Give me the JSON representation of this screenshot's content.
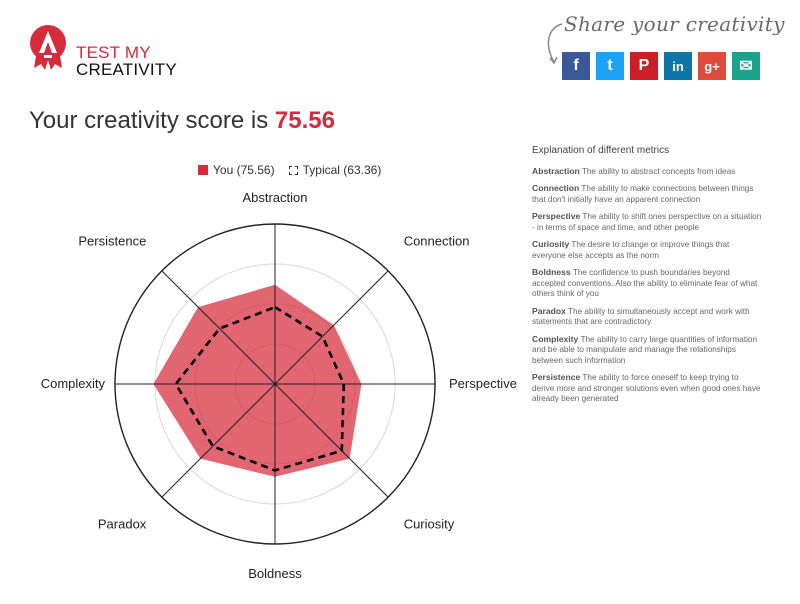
{
  "logo": {
    "line1": "TEST MY",
    "line2": "CREATIVITY",
    "icon": "lightbulb-badge-icon",
    "brand_color": "#d52b3a"
  },
  "share": {
    "title": "Share your creativity",
    "buttons": [
      {
        "name": "facebook",
        "glyph": "f",
        "color": "#3b5998",
        "icon": "facebook-icon"
      },
      {
        "name": "twitter",
        "glyph": "t",
        "color": "#1da1f2",
        "icon": "twitter-icon"
      },
      {
        "name": "pinterest",
        "glyph": "P",
        "color": "#cb2027",
        "icon": "pinterest-icon"
      },
      {
        "name": "linkedin",
        "glyph": "in",
        "color": "#0e76a8",
        "icon": "linkedin-icon"
      },
      {
        "name": "googleplus",
        "glyph": "g+",
        "color": "#dd4b39",
        "icon": "google-plus-icon"
      },
      {
        "name": "email",
        "glyph": "✉",
        "color": "#1aa48e",
        "icon": "email-icon"
      }
    ]
  },
  "score": {
    "prefix": "Your creativity score is",
    "value": "75.56"
  },
  "chart_data": {
    "type": "radar",
    "axes": [
      "Abstraction",
      "Connection",
      "Perspective",
      "Curiosity",
      "Boldness",
      "Paradox",
      "Complexity",
      "Persistence"
    ],
    "max": 100,
    "grid_levels": 4,
    "series": [
      {
        "name": "You (75.56)",
        "values": [
          62,
          52,
          54,
          66,
          58,
          66,
          76,
          68
        ],
        "color": "#d52b3a",
        "style": "filled"
      },
      {
        "name": "Typical (63.36)",
        "values": [
          48,
          42,
          43,
          59,
          54,
          55,
          62,
          49
        ],
        "color": "#000000",
        "style": "dashed"
      }
    ],
    "legend_position": "top"
  },
  "explanation": {
    "title": "Explanation of different metrics",
    "metrics": [
      {
        "name": "Abstraction",
        "text": "The ability to abstract concepts from ideas"
      },
      {
        "name": "Connection",
        "text": "The ability to make connections between things that don't initially have an apparent connection"
      },
      {
        "name": "Perspective",
        "text": "The ability to shift ones perspective on a situation - in terms of space and time, and other people"
      },
      {
        "name": "Curiosity",
        "text": "The desire to change or improve things that everyone else accepts as the norm"
      },
      {
        "name": "Boldness",
        "text": "The confidence to push boundaries beyond accepted conventions. Also the ability to eliminate fear of what others think of you"
      },
      {
        "name": "Paradox",
        "text": "The ability to simultaneously accept and work with statements that are contradictory"
      },
      {
        "name": "Complexity",
        "text": "The ability to carry large quantities of information and be able to manipulate and manage the relationships between such information"
      },
      {
        "name": "Persistence",
        "text": "The ability to force oneself to keep trying to derive more and stronger solutions even when good ones have already been generated"
      }
    ]
  }
}
